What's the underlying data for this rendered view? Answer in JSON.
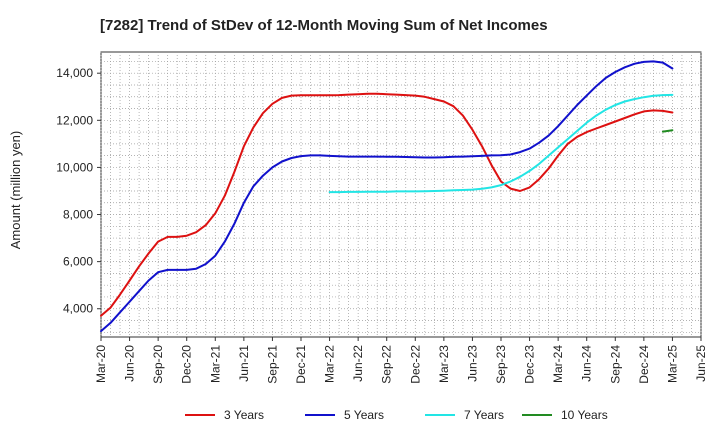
{
  "chart_data": {
    "type": "line",
    "title": "[7282]  Trend of StDev of 12-Month Moving Sum of Net Incomes",
    "ylabel": "Amount (million yen)",
    "xlabel": "",
    "ylim": [
      2800,
      14900
    ],
    "yticks": [
      4000,
      6000,
      8000,
      10000,
      12000,
      14000
    ],
    "ytick_labels": [
      "4,000",
      "6,000",
      "8,000",
      "10,000",
      "12,000",
      "14,000"
    ],
    "x_range": [
      "Mar-20",
      "Jun-25"
    ],
    "xtick_labels": [
      "Mar-20",
      "Jun-20",
      "Sep-20",
      "Dec-20",
      "Mar-21",
      "Jun-21",
      "Sep-21",
      "Dec-21",
      "Mar-22",
      "Jun-22",
      "Sep-22",
      "Dec-22",
      "Mar-23",
      "Jun-23",
      "Sep-23",
      "Dec-23",
      "Mar-24",
      "Jun-24",
      "Sep-24",
      "Dec-24",
      "Mar-25",
      "Jun-25"
    ],
    "grid": true,
    "legend_position": "bottom",
    "series": [
      {
        "name": "3 Years",
        "color": "#dd1111",
        "x": [
          "Mar-20",
          "Apr-20",
          "May-20",
          "Jun-20",
          "Jul-20",
          "Aug-20",
          "Sep-20",
          "Oct-20",
          "Nov-20",
          "Dec-20",
          "Jan-21",
          "Feb-21",
          "Mar-21",
          "Apr-21",
          "May-21",
          "Jun-21",
          "Jul-21",
          "Aug-21",
          "Sep-21",
          "Oct-21",
          "Nov-21",
          "Dec-21",
          "Jan-22",
          "Feb-22",
          "Mar-22",
          "Apr-22",
          "May-22",
          "Jun-22",
          "Jul-22",
          "Aug-22",
          "Sep-22",
          "Oct-22",
          "Nov-22",
          "Dec-22",
          "Jan-23",
          "Feb-23",
          "Mar-23",
          "Apr-23",
          "May-23",
          "Jun-23",
          "Jul-23",
          "Aug-23",
          "Sep-23",
          "Oct-23",
          "Nov-23",
          "Dec-23",
          "Jan-24",
          "Feb-24",
          "Mar-24",
          "Apr-24",
          "May-24",
          "Jun-24",
          "Jul-24",
          "Aug-24",
          "Sep-24",
          "Oct-24",
          "Nov-24",
          "Dec-24",
          "Jan-25",
          "Feb-25",
          "Mar-25"
        ],
        "values": [
          3700,
          4050,
          4600,
          5200,
          5800,
          6350,
          6850,
          7050,
          7050,
          7100,
          7250,
          7550,
          8050,
          8800,
          9800,
          10900,
          11700,
          12300,
          12700,
          12950,
          13050,
          13060,
          13060,
          13060,
          13060,
          13070,
          13090,
          13110,
          13130,
          13130,
          13110,
          13090,
          13070,
          13050,
          13000,
          12900,
          12800,
          12600,
          12200,
          11600,
          10900,
          10100,
          9400,
          9100,
          9000,
          9150,
          9500,
          9950,
          10500,
          11000,
          11300,
          11500,
          11650,
          11800,
          11950,
          12100,
          12250,
          12380,
          12420,
          12400,
          12330
        ]
      },
      {
        "name": "5 Years",
        "color": "#1111cc",
        "x": [
          "Mar-20",
          "Apr-20",
          "May-20",
          "Jun-20",
          "Jul-20",
          "Aug-20",
          "Sep-20",
          "Oct-20",
          "Nov-20",
          "Dec-20",
          "Jan-21",
          "Feb-21",
          "Mar-21",
          "Apr-21",
          "May-21",
          "Jun-21",
          "Jul-21",
          "Aug-21",
          "Sep-21",
          "Oct-21",
          "Nov-21",
          "Dec-21",
          "Jan-22",
          "Feb-22",
          "Mar-22",
          "Apr-22",
          "May-22",
          "Jun-22",
          "Jul-22",
          "Aug-22",
          "Sep-22",
          "Oct-22",
          "Nov-22",
          "Dec-22",
          "Jan-23",
          "Feb-23",
          "Mar-23",
          "Apr-23",
          "May-23",
          "Jun-23",
          "Jul-23",
          "Aug-23",
          "Sep-23",
          "Oct-23",
          "Nov-23",
          "Dec-23",
          "Jan-24",
          "Feb-24",
          "Mar-24",
          "Apr-24",
          "May-24",
          "Jun-24",
          "Jul-24",
          "Aug-24",
          "Sep-24",
          "Oct-24",
          "Nov-24",
          "Dec-24",
          "Jan-25",
          "Feb-25",
          "Mar-25"
        ],
        "values": [
          3050,
          3400,
          3850,
          4300,
          4750,
          5200,
          5550,
          5650,
          5650,
          5650,
          5700,
          5900,
          6250,
          6850,
          7600,
          8500,
          9200,
          9650,
          10000,
          10250,
          10400,
          10480,
          10510,
          10510,
          10490,
          10470,
          10460,
          10460,
          10460,
          10460,
          10450,
          10450,
          10440,
          10430,
          10420,
          10420,
          10430,
          10450,
          10460,
          10470,
          10490,
          10510,
          10520,
          10550,
          10650,
          10800,
          11050,
          11350,
          11750,
          12200,
          12650,
          13050,
          13450,
          13800,
          14050,
          14250,
          14400,
          14480,
          14500,
          14450,
          14200
        ]
      },
      {
        "name": "7 Years",
        "color": "#22e5e5",
        "x": [
          "Mar-22",
          "Apr-22",
          "May-22",
          "Jun-22",
          "Jul-22",
          "Aug-22",
          "Sep-22",
          "Oct-22",
          "Nov-22",
          "Dec-22",
          "Jan-23",
          "Feb-23",
          "Mar-23",
          "Apr-23",
          "May-23",
          "Jun-23",
          "Jul-23",
          "Aug-23",
          "Sep-23",
          "Oct-23",
          "Nov-23",
          "Dec-23",
          "Jan-24",
          "Feb-24",
          "Mar-24",
          "Apr-24",
          "May-24",
          "Jun-24",
          "Jul-24",
          "Aug-24",
          "Sep-24",
          "Oct-24",
          "Nov-24",
          "Dec-24",
          "Jan-25",
          "Feb-25",
          "Mar-25"
        ],
        "values": [
          8950,
          8950,
          8960,
          8960,
          8970,
          8970,
          8970,
          8980,
          8980,
          8980,
          8990,
          9000,
          9010,
          9030,
          9040,
          9060,
          9090,
          9150,
          9250,
          9400,
          9600,
          9850,
          10150,
          10500,
          10850,
          11200,
          11550,
          11900,
          12200,
          12450,
          12650,
          12800,
          12900,
          12980,
          13040,
          13070,
          13080
        ]
      },
      {
        "name": "10 Years",
        "color": "#228b22",
        "x": [
          "Feb-25",
          "Mar-25"
        ],
        "values": [
          11520,
          11580
        ]
      }
    ]
  }
}
